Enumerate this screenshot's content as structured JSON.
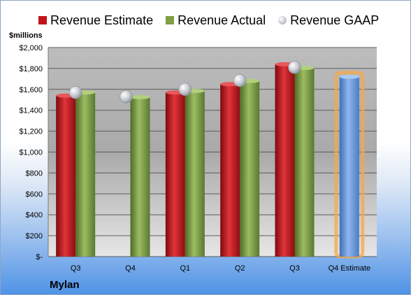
{
  "chart_data": {
    "type": "bar",
    "categories": [
      "Q3",
      "Q4",
      "Q1",
      "Q2",
      "Q3",
      "Q4 Estimate"
    ],
    "series": [
      {
        "name": "Revenue Estimate",
        "color": "#c0141a",
        "values": [
          1540,
          null,
          1570,
          1650,
          1840,
          null
        ]
      },
      {
        "name": "Revenue Actual",
        "color": "#7f9e45",
        "values": [
          1570,
          1525,
          1585,
          1680,
          1805,
          null
        ]
      },
      {
        "name": "Revenue GAAP",
        "color": "#b8bcc3",
        "values": [
          1570,
          1530,
          1600,
          1685,
          1810,
          null
        ]
      }
    ],
    "highlight": {
      "category": "Q4 Estimate",
      "value": 1720,
      "color": "#6b9be0",
      "glow": "#f7a845"
    },
    "ylabel": "$millions",
    "ylim": [
      0,
      2000
    ],
    "yticks": [
      0,
      200,
      400,
      600,
      800,
      1000,
      1200,
      1400,
      1600,
      1800,
      2000
    ],
    "ytick_labels": [
      "$-",
      "$200",
      "$400",
      "$600",
      "$800",
      "$1,000",
      "$1,200",
      "$1,400",
      "$1,600",
      "$1,800",
      "$2,000"
    ],
    "grid": true,
    "legend_position": "top",
    "company": "Mylan"
  }
}
